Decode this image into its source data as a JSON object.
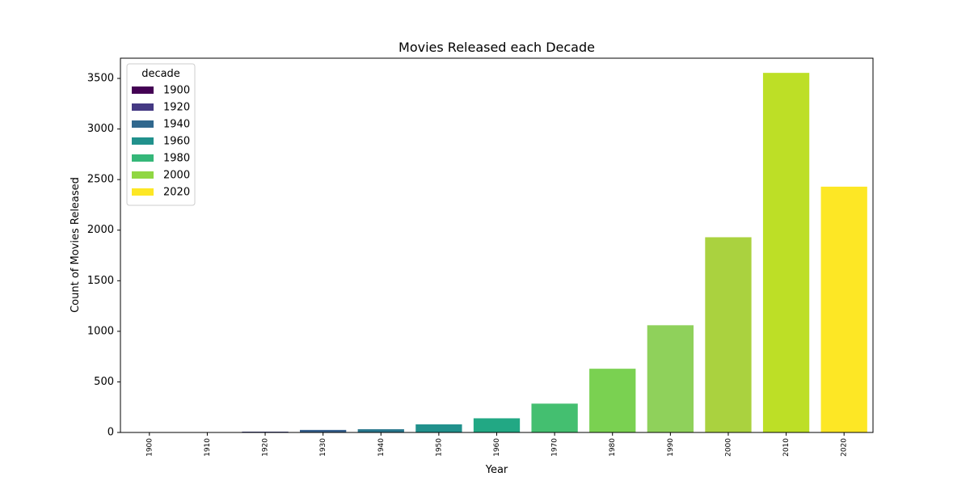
{
  "chart_data": {
    "type": "bar",
    "title": "Movies Released each Decade",
    "xlabel": "Year",
    "ylabel": "Count of Movies Released",
    "categories": [
      "1900",
      "1910",
      "1920",
      "1930",
      "1940",
      "1950",
      "1960",
      "1970",
      "1980",
      "1990",
      "2000",
      "2010",
      "2020"
    ],
    "values": [
      1,
      2,
      8,
      25,
      32,
      80,
      140,
      285,
      630,
      1060,
      1930,
      3555,
      2430
    ],
    "bar_colors": [
      "#440154",
      "#482475",
      "#414487",
      "#355f8d",
      "#2a788e",
      "#21918c",
      "#22a884",
      "#44bf70",
      "#7ad151",
      "#8fd15b",
      "#aad23f",
      "#bddf26",
      "#fde725"
    ],
    "ylim": [
      0,
      3700
    ],
    "yticks": [
      0,
      500,
      1000,
      1500,
      2000,
      2500,
      3000,
      3500
    ],
    "grid": false,
    "legend": {
      "title": "decade",
      "placement": "top-left",
      "entries": [
        {
          "label": "1900",
          "color": "#440154"
        },
        {
          "label": "1920",
          "color": "#443983"
        },
        {
          "label": "1940",
          "color": "#31688e"
        },
        {
          "label": "1960",
          "color": "#21918c"
        },
        {
          "label": "1980",
          "color": "#35b779"
        },
        {
          "label": "2000",
          "color": "#90d743"
        },
        {
          "label": "2020",
          "color": "#fde725"
        }
      ]
    }
  }
}
